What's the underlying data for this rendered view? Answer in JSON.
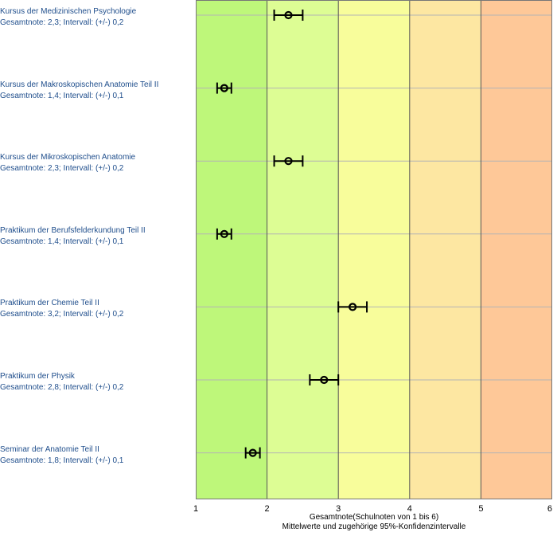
{
  "chart_data": {
    "type": "scatter",
    "orientation": "horizontal-errorbar",
    "xlim": [
      1,
      6
    ],
    "xticks": [
      1,
      2,
      3,
      4,
      5,
      6
    ],
    "xlabel": "Gesamtnote(Schulnoten von 1 bis 6)",
    "xlabel2": "Mittelwerte und zugehörige 95%-Konfidenzintervalle",
    "grid": true,
    "bands": [
      {
        "from": 1,
        "to": 2,
        "color": "#bef77a"
      },
      {
        "from": 2,
        "to": 3,
        "color": "#ddfd94"
      },
      {
        "from": 3,
        "to": 4,
        "color": "#f8fd9b"
      },
      {
        "from": 4,
        "to": 5,
        "color": "#fde7a2"
      },
      {
        "from": 5,
        "to": 6,
        "color": "#fec898"
      }
    ],
    "items": [
      {
        "title": "Kursus der Medizinischen Psychologie",
        "detail": "Gesamtnote: 2,3;  Intervall: (+/-) 0,2",
        "mean": 2.3,
        "ci": 0.2
      },
      {
        "title": "Kursus der Makroskopischen Anatomie Teil II",
        "detail": "Gesamtnote: 1,4;  Intervall: (+/-) 0,1",
        "mean": 1.4,
        "ci": 0.1
      },
      {
        "title": "Kursus der Mikroskopischen Anatomie",
        "detail": "Gesamtnote: 2,3;  Intervall: (+/-) 0,2",
        "mean": 2.3,
        "ci": 0.2
      },
      {
        "title": "Praktikum der Berufsfelderkundung Teil II",
        "detail": "Gesamtnote: 1,4;  Intervall: (+/-) 0,1",
        "mean": 1.4,
        "ci": 0.1
      },
      {
        "title": "Praktikum der Chemie Teil II",
        "detail": "Gesamtnote: 3,2;  Intervall: (+/-) 0,2",
        "mean": 3.2,
        "ci": 0.2
      },
      {
        "title": "Praktikum der Physik",
        "detail": "Gesamtnote: 2,8;  Intervall: (+/-) 0,2",
        "mean": 2.8,
        "ci": 0.2
      },
      {
        "title": "Seminar der Anatomie Teil II",
        "detail": "Gesamtnote: 1,8;  Intervall: (+/-) 0,1",
        "mean": 1.8,
        "ci": 0.1
      }
    ],
    "colors": {
      "label": "#1f4e8c",
      "marker": "#000000",
      "gridline": "#b4b4b4",
      "boundary": "#555555"
    }
  }
}
